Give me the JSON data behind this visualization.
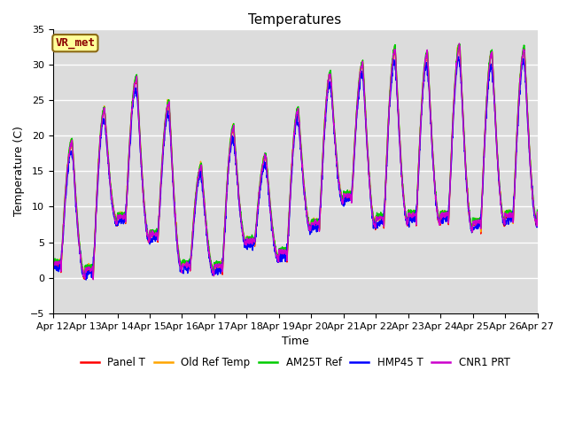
{
  "title": "Temperatures",
  "ylabel": "Temperature (C)",
  "xlabel": "Time",
  "annotation": "VR_met",
  "ylim": [
    -5,
    35
  ],
  "series": {
    "Panel T": {
      "color": "#ff0000"
    },
    "Old Ref Temp": {
      "color": "#ffa500"
    },
    "AM25T Ref": {
      "color": "#00cc00"
    },
    "HMP45 T": {
      "color": "#0000ff"
    },
    "CNR1 PRT": {
      "color": "#cc00cc"
    }
  },
  "xtick_labels": [
    "Apr 12",
    "Apr 13",
    "Apr 14",
    "Apr 15",
    "Apr 16",
    "Apr 17",
    "Apr 18",
    "Apr 19",
    "Apr 20",
    "Apr 21",
    "Apr 22",
    "Apr 23",
    "Apr 24",
    "Apr 25",
    "Apr 26",
    "Apr 27"
  ],
  "ytick_vals": [
    -5,
    0,
    5,
    10,
    15,
    20,
    25,
    30,
    35
  ],
  "bg_color": "#dcdcdc",
  "title_fontsize": 11,
  "axis_label_fontsize": 9,
  "tick_fontsize": 8,
  "legend_fontsize": 8.5,
  "annotation_fontsize": 9,
  "linewidth": 1.0,
  "day_peaks": [
    19.0,
    23.5,
    28.0,
    24.5,
    15.5,
    21.0,
    17.0,
    23.5,
    28.5,
    30.0,
    32.0,
    31.5,
    32.5,
    31.5,
    32.0
  ],
  "day_mins": [
    1.0,
    0.0,
    7.5,
    5.0,
    1.0,
    0.5,
    4.5,
    2.5,
    6.5,
    10.5,
    7.0,
    7.5,
    7.5,
    6.5,
    7.5
  ]
}
